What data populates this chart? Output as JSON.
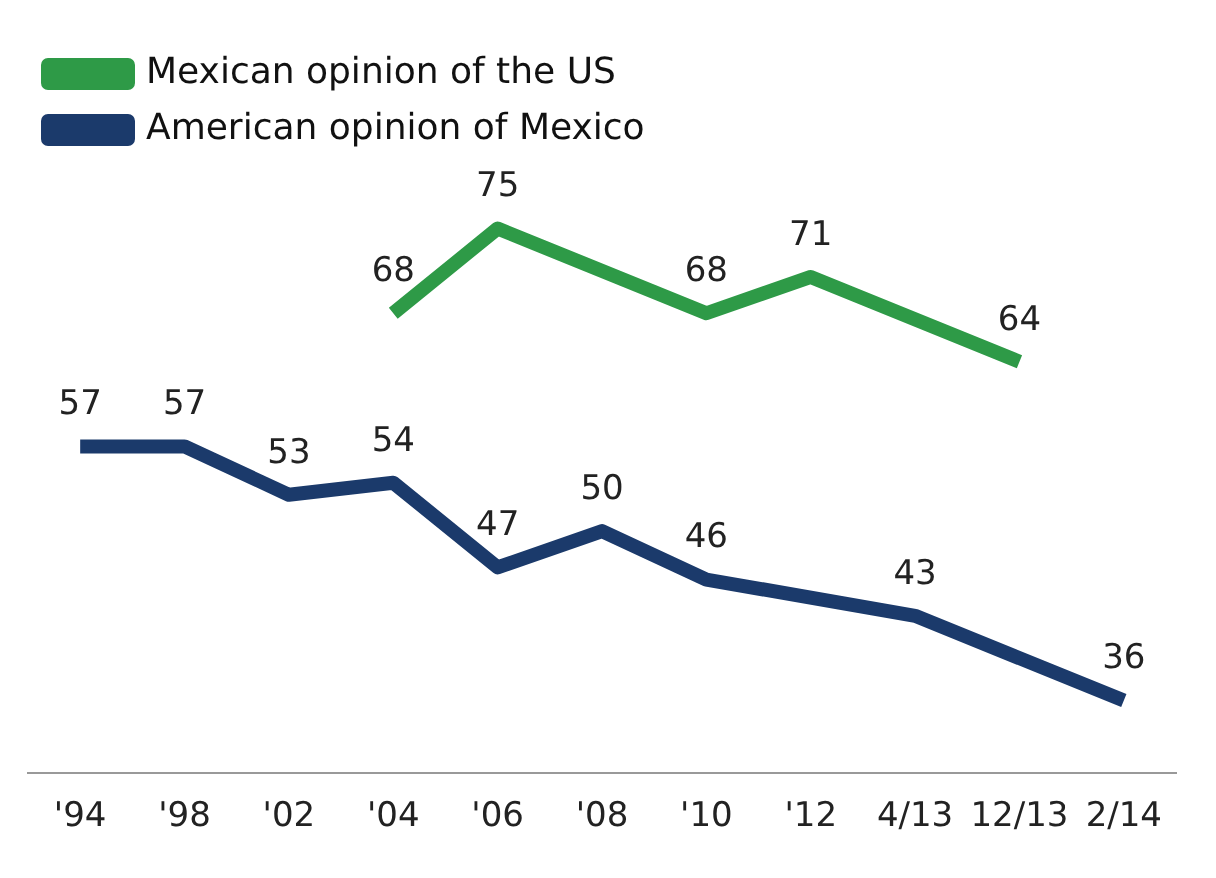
{
  "chart_data": {
    "type": "line",
    "categories": [
      "'94",
      "'98",
      "'02",
      "'04",
      "'06",
      "'08",
      "'10",
      "'12",
      "4/13",
      "12/13",
      "2/14"
    ],
    "series": [
      {
        "name": "Mexican opinion of the US",
        "color": "#2e9a47",
        "values": [
          null,
          null,
          null,
          68,
          75,
          null,
          68,
          71,
          null,
          64,
          null
        ],
        "value_labels": [
          null,
          null,
          null,
          "68",
          "75",
          null,
          "68",
          "71",
          null,
          "64",
          null
        ]
      },
      {
        "name": "American opinion of Mexico",
        "color": "#1b3a6b",
        "values": [
          57,
          57,
          53,
          54,
          47,
          50,
          46,
          null,
          43,
          null,
          36
        ],
        "value_labels": [
          "57",
          "57",
          "53",
          "54",
          "47",
          "50",
          "46",
          null,
          "43",
          null,
          "36"
        ]
      }
    ],
    "legend": "top left",
    "tick_labels": "x",
    "grid": false,
    "marker": "none"
  }
}
